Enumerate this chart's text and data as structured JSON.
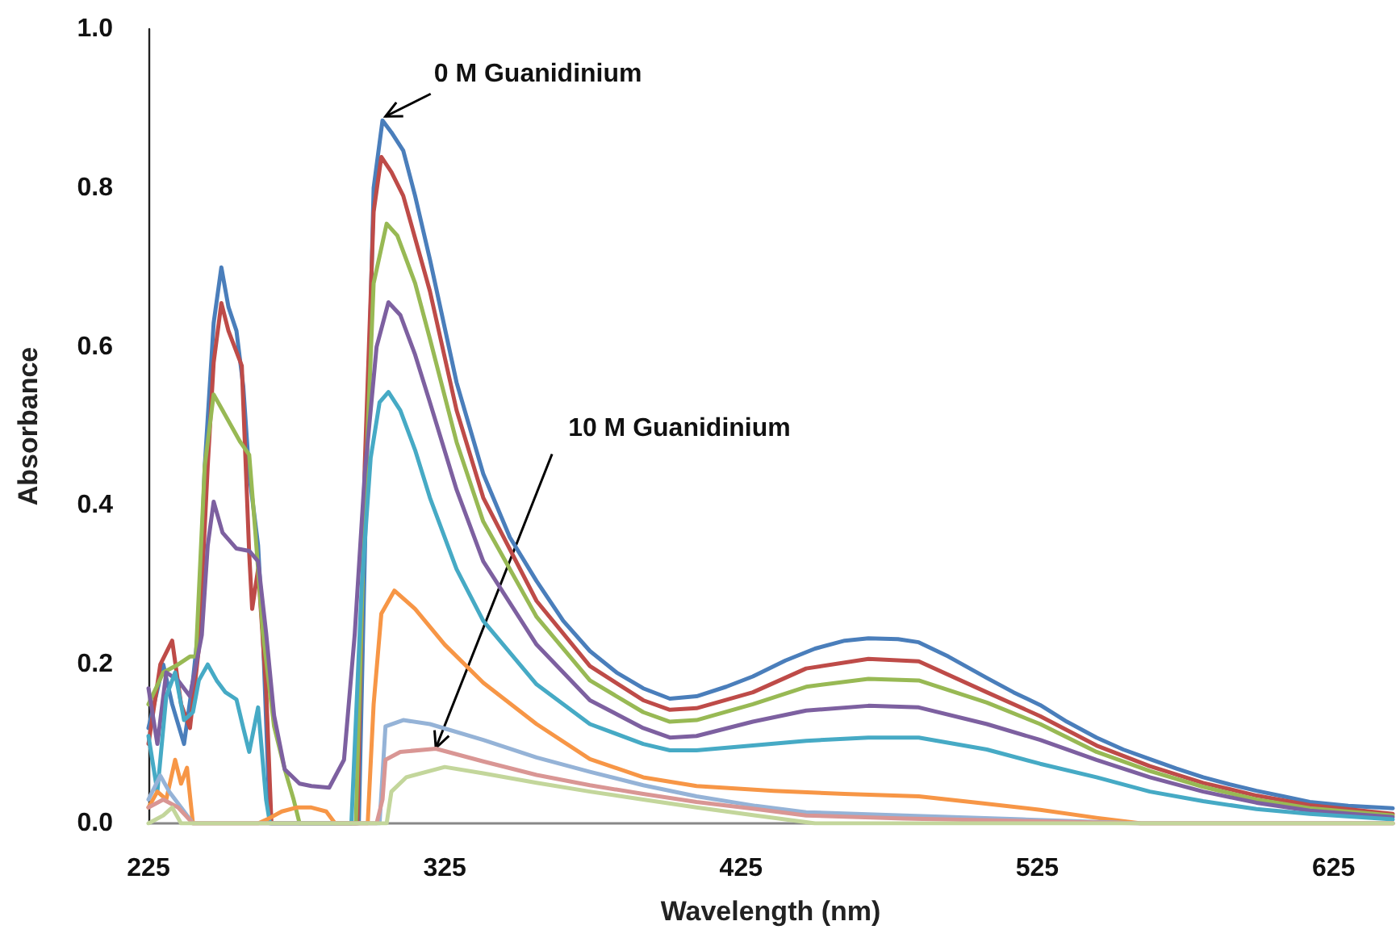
{
  "chart_data": {
    "type": "line",
    "xlabel": "Wavelength (nm)",
    "ylabel": "Absorbance",
    "xlim": [
      225,
      645
    ],
    "xticks": [
      225,
      325,
      425,
      525,
      625
    ],
    "ylim": [
      0,
      1
    ],
    "yticks": [
      {
        "value": 0,
        "label": "0.0"
      },
      {
        "value": 0.2,
        "label": "0.2"
      },
      {
        "value": 0.4,
        "label": "0.4"
      },
      {
        "value": 0.6,
        "label": "0.6"
      },
      {
        "value": 0.8,
        "label": "0.8"
      },
      {
        "value": 1,
        "label": "1.0"
      }
    ],
    "grid": false,
    "marker": "none",
    "line_style": "solid",
    "annotations": [
      {
        "text": "0 M Guanidinium",
        "x": 305,
        "y": 0.89
      },
      {
        "text": "10 M Guanidinium",
        "x": 322,
        "y": 0.095
      }
    ],
    "series": [
      {
        "color": "#4a7ebb",
        "x": [
          225,
          230,
          233,
          237,
          240,
          242,
          244,
          247,
          249.6,
          252,
          254.7,
          257,
          259,
          262,
          263.6,
          266,
          296,
          299,
          301,
          304,
          307,
          311,
          315,
          320,
          329,
          338,
          347,
          356,
          365,
          374,
          383,
          392,
          401,
          410,
          420,
          429,
          440,
          450,
          460,
          468,
          478,
          485,
          495,
          508,
          517,
          526,
          535,
          545,
          554,
          563,
          572,
          581,
          590,
          599,
          608,
          617,
          630,
          645
        ],
        "values": [
          0.12,
          0.2,
          0.15,
          0.1,
          0.18,
          0.25,
          0.45,
          0.63,
          0.7,
          0.65,
          0.62,
          0.55,
          0.44,
          0.35,
          0.24,
          0,
          0,
          0.5,
          0.8,
          0.885,
          0.87,
          0.847,
          0.79,
          0.71,
          0.555,
          0.44,
          0.36,
          0.305,
          0.255,
          0.217,
          0.19,
          0.17,
          0.157,
          0.16,
          0.172,
          0.185,
          0.205,
          0.22,
          0.23,
          0.233,
          0.232,
          0.228,
          0.21,
          0.183,
          0.165,
          0.149,
          0.128,
          0.108,
          0.093,
          0.081,
          0.069,
          0.058,
          0.049,
          0.041,
          0.034,
          0.027,
          0.022,
          0.019
        ]
      },
      {
        "color": "#be4b48",
        "x": [
          225,
          229,
          233,
          236,
          239,
          242,
          245,
          247,
          249.6,
          252,
          256.5,
          259,
          260,
          262,
          264.7,
          266.5,
          295.5,
          298,
          301,
          303.6,
          307,
          311,
          320,
          329,
          338,
          356,
          374,
          392,
          401,
          410,
          429,
          447,
          468,
          485,
          508,
          526,
          545,
          563,
          581,
          599,
          617,
          645
        ],
        "values": [
          0.1,
          0.2,
          0.23,
          0.15,
          0.12,
          0.22,
          0.45,
          0.58,
          0.655,
          0.62,
          0.576,
          0.34,
          0.27,
          0.32,
          0.17,
          0,
          0,
          0.45,
          0.77,
          0.839,
          0.82,
          0.79,
          0.67,
          0.52,
          0.41,
          0.28,
          0.198,
          0.155,
          0.143,
          0.145,
          0.165,
          0.195,
          0.207,
          0.204,
          0.165,
          0.135,
          0.098,
          0.072,
          0.051,
          0.035,
          0.023,
          0.012
        ]
      },
      {
        "color": "#98b954",
        "x": [
          225,
          230,
          235,
          239,
          241,
          244,
          247,
          250,
          253,
          256,
          259,
          261,
          263.6,
          267.4,
          271,
          274,
          276,
          295,
          298,
          301,
          305.4,
          309,
          315,
          320,
          329,
          338,
          356,
          374,
          392,
          401,
          410,
          429,
          447,
          468,
          485,
          508,
          526,
          545,
          563,
          581,
          599,
          617,
          645
        ],
        "values": [
          0.15,
          0.19,
          0.2,
          0.21,
          0.21,
          0.45,
          0.54,
          0.52,
          0.5,
          0.48,
          0.464,
          0.37,
          0.24,
          0.122,
          0.068,
          0.03,
          0,
          0,
          0.4,
          0.68,
          0.755,
          0.74,
          0.68,
          0.61,
          0.48,
          0.38,
          0.26,
          0.18,
          0.14,
          0.128,
          0.13,
          0.15,
          0.172,
          0.182,
          0.18,
          0.152,
          0.125,
          0.09,
          0.066,
          0.046,
          0.03,
          0.019,
          0.01
        ]
      },
      {
        "color": "#7d60a0",
        "x": [
          225,
          228,
          231,
          235,
          239,
          243,
          245,
          247,
          250,
          254.7,
          259,
          262,
          264.7,
          267.4,
          271,
          276,
          280,
          286,
          291,
          294.6,
          298,
          302,
          306,
          310,
          315,
          320,
          329,
          338,
          356,
          374,
          392,
          401,
          410,
          429,
          447,
          468,
          485,
          508,
          526,
          545,
          563,
          581,
          599,
          617,
          645
        ],
        "values": [
          0.17,
          0.1,
          0.19,
          0.18,
          0.16,
          0.237,
          0.35,
          0.405,
          0.366,
          0.346,
          0.343,
          0.33,
          0.24,
          0.136,
          0.068,
          0.05,
          0.047,
          0.045,
          0.08,
          0.237,
          0.44,
          0.6,
          0.656,
          0.64,
          0.59,
          0.53,
          0.42,
          0.33,
          0.225,
          0.155,
          0.12,
          0.108,
          0.11,
          0.128,
          0.142,
          0.148,
          0.146,
          0.125,
          0.105,
          0.08,
          0.058,
          0.04,
          0.026,
          0.016,
          0.008
        ]
      },
      {
        "color": "#46aac5",
        "x": [
          225,
          228,
          231,
          234,
          237,
          240,
          242,
          245,
          248,
          251,
          254.7,
          257,
          259,
          262,
          264.7,
          266,
          293.5,
          297,
          300,
          303,
          306,
          310,
          315,
          320,
          329,
          338,
          356,
          374,
          392,
          401,
          410,
          429,
          447,
          468,
          485,
          508,
          526,
          545,
          563,
          581,
          599,
          617,
          645
        ],
        "values": [
          0.11,
          0.04,
          0.16,
          0.19,
          0.13,
          0.14,
          0.18,
          0.2,
          0.18,
          0.165,
          0.156,
          0.12,
          0.09,
          0.146,
          0.03,
          0,
          0,
          0.3,
          0.46,
          0.53,
          0.543,
          0.52,
          0.47,
          0.41,
          0.32,
          0.255,
          0.175,
          0.125,
          0.1,
          0.092,
          0.092,
          0.098,
          0.104,
          0.108,
          0.108,
          0.093,
          0.075,
          0.058,
          0.04,
          0.028,
          0.018,
          0.012,
          0.005
        ]
      },
      {
        "color": "#f79646",
        "x": [
          225,
          228,
          231,
          234,
          236,
          238,
          240,
          242,
          262,
          265,
          270,
          275,
          280,
          285,
          288,
          299,
          301,
          303.6,
          308,
          315,
          325,
          338,
          356,
          374,
          392,
          410,
          436,
          460,
          485,
          505,
          526,
          545,
          560,
          645
        ],
        "values": [
          0.02,
          0.04,
          0.03,
          0.08,
          0.05,
          0.07,
          0,
          0,
          0,
          0.005,
          0.015,
          0.02,
          0.02,
          0.015,
          0,
          0,
          0.15,
          0.264,
          0.293,
          0.27,
          0.225,
          0.177,
          0.125,
          0.081,
          0.058,
          0.047,
          0.041,
          0.037,
          0.034,
          0.026,
          0.017,
          0.007,
          0,
          0
        ]
      },
      {
        "color": "#95b3d7",
        "x": [
          225,
          229,
          232,
          236,
          240,
          303,
          305,
          311,
          320,
          338,
          356,
          374,
          392,
          410,
          430,
          447,
          480,
          520,
          560,
          645
        ],
        "values": [
          0.03,
          0.06,
          0.04,
          0.02,
          0,
          0,
          0.122,
          0.13,
          0.125,
          0.105,
          0.083,
          0.065,
          0.048,
          0.034,
          0.022,
          0.014,
          0.01,
          0.005,
          0,
          0
        ]
      },
      {
        "color": "#d99694",
        "x": [
          225,
          230,
          235,
          240,
          302,
          304,
          305,
          310,
          322,
          338,
          356,
          374,
          392,
          410,
          430,
          447,
          480,
          520,
          560,
          645
        ],
        "values": [
          0.02,
          0.03,
          0.02,
          0,
          0,
          0.03,
          0.08,
          0.09,
          0.094,
          0.078,
          0.061,
          0.048,
          0.037,
          0.027,
          0.018,
          0.01,
          0.006,
          0.003,
          0,
          0
        ]
      },
      {
        "color": "#c3d69b",
        "x": [
          225,
          230,
          233,
          236,
          305.4,
          307,
          312,
          325,
          338,
          356,
          374,
          392,
          410,
          430,
          450,
          645
        ],
        "values": [
          0,
          0.01,
          0.02,
          0,
          0,
          0.04,
          0.058,
          0.071,
          0.063,
          0.051,
          0.04,
          0.03,
          0.02,
          0.01,
          0,
          0
        ]
      }
    ]
  }
}
